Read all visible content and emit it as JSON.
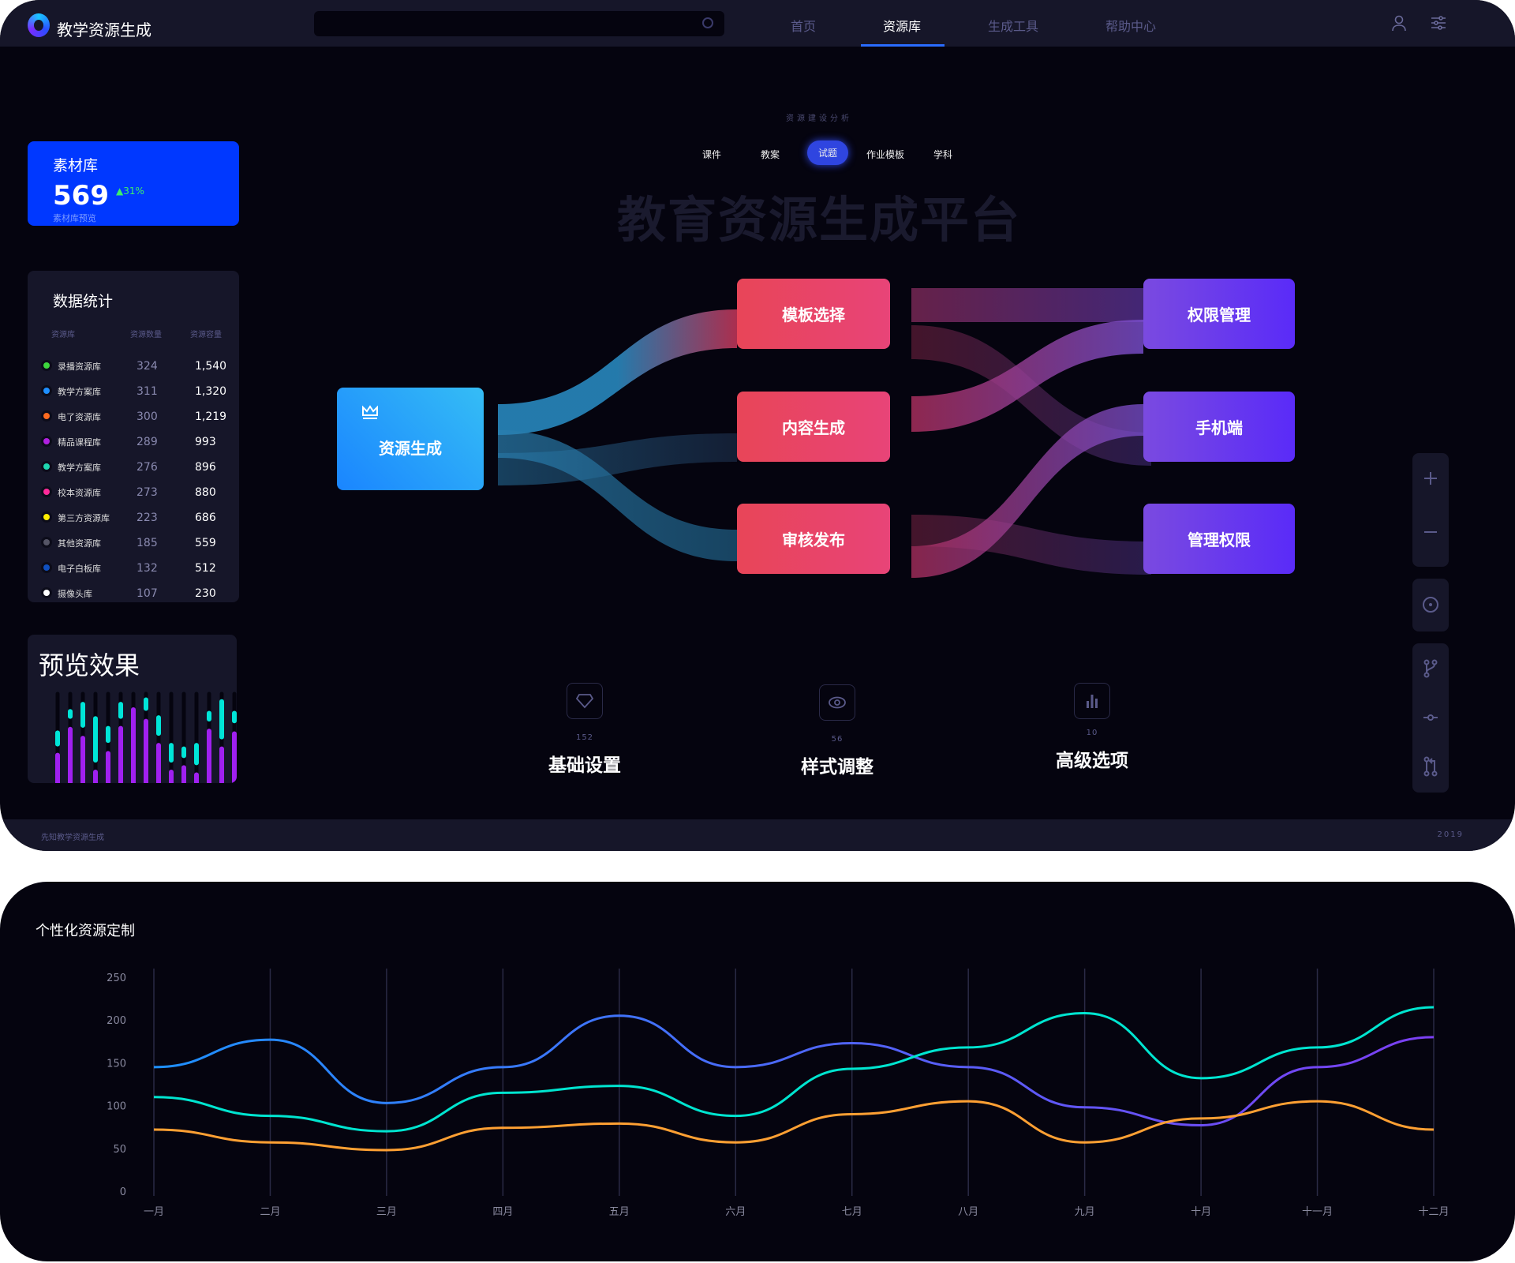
{
  "header": {
    "app_title": "教学资源生成",
    "search_placeholder": "",
    "nav": [
      {
        "label": "首页",
        "active": false
      },
      {
        "label": "资源库",
        "active": true
      },
      {
        "label": "生成工具",
        "active": false
      },
      {
        "label": "帮助中心",
        "active": false
      }
    ],
    "accent": "#2a6cff"
  },
  "material_card": {
    "title": "素材库",
    "value": "569",
    "delta": "31%",
    "subtitle": "素材库预览"
  },
  "stats": {
    "title": "数据统计",
    "columns": [
      "资源库",
      "资源数量",
      "资源容量"
    ],
    "rows": [
      {
        "name": "录播资源库",
        "count": "324",
        "capacity": "1,540",
        "color": "#3dd63d"
      },
      {
        "name": "教学方案库",
        "count": "311",
        "capacity": "1,320",
        "color": "#1e8fff"
      },
      {
        "name": "电了资源库",
        "count": "300",
        "capacity": "1,219",
        "color": "#ff6a1f"
      },
      {
        "name": "精品课程库",
        "count": "289",
        "capacity": "993",
        "color": "#b020e0"
      },
      {
        "name": "教学方案库",
        "count": "276",
        "capacity": "896",
        "color": "#1ed6b0"
      },
      {
        "name": "校本资源库",
        "count": "273",
        "capacity": "880",
        "color": "#ff2a9a"
      },
      {
        "name": "第三方资源库",
        "count": "223",
        "capacity": "686",
        "color": "#ffee00"
      },
      {
        "name": "其他资源库",
        "count": "185",
        "capacity": "559",
        "color": "#555566"
      },
      {
        "name": "电子白板库",
        "count": "132",
        "capacity": "512",
        "color": "#1050c0"
      },
      {
        "name": "摄像头库",
        "count": "107",
        "capacity": "230",
        "color": "#ffffff"
      }
    ]
  },
  "preview": {
    "title": "预览效果",
    "bars": [
      {
        "base": 0.34,
        "seg": [
          0.41,
          0.59
        ]
      },
      {
        "base": 0.63,
        "seg": [
          0.72,
          0.83
        ]
      },
      {
        "base": 0.53,
        "seg": [
          0.62,
          0.91
        ]
      },
      {
        "base": 0.15,
        "seg": [
          0.23,
          0.75
        ]
      },
      {
        "base": 0.36,
        "seg": [
          0.45,
          0.64
        ]
      },
      {
        "base": 0.64,
        "seg": [
          0.72,
          0.91
        ]
      },
      {
        "base": 0.85,
        "seg": null
      },
      {
        "base": 0.72,
        "seg": [
          0.81,
          0.96
        ]
      },
      {
        "base": 0.45,
        "seg": [
          0.53,
          0.76
        ]
      },
      {
        "base": 0.15,
        "seg": [
          0.23,
          0.45
        ]
      },
      {
        "base": 0.2,
        "seg": [
          0.28,
          0.41
        ]
      },
      {
        "base": 0.12,
        "seg": [
          0.2,
          0.45
        ]
      },
      {
        "base": 0.61,
        "seg": [
          0.69,
          0.81
        ]
      },
      {
        "base": 0.41,
        "seg": [
          0.49,
          0.94
        ]
      },
      {
        "base": 0.58,
        "seg": [
          0.67,
          0.81
        ]
      }
    ],
    "colors": {
      "base": "#a020f0",
      "seg": "#00e5d8"
    }
  },
  "center": {
    "subtitle": "资源建设分析",
    "tabs": [
      {
        "label": "课件",
        "active": false
      },
      {
        "label": "教案",
        "active": false
      },
      {
        "label": "试题",
        "active": true
      },
      {
        "label": "作业模板",
        "active": false
      },
      {
        "label": "学科",
        "active": false
      }
    ],
    "watermark_title": "教育资源生成平台"
  },
  "flow": {
    "source": {
      "label": "资源生成",
      "icon": "crown-icon"
    },
    "middle": [
      "模板选择",
      "内容生成",
      "审核发布"
    ],
    "targets": [
      "权限管理",
      "手机端",
      "管理权限"
    ]
  },
  "features": [
    {
      "icon": "diamond-icon",
      "count": "152",
      "label": "基础设置"
    },
    {
      "icon": "eye-icon",
      "count": "56",
      "label": "样式调整"
    },
    {
      "icon": "bar-chart-icon",
      "count": "10",
      "label": "高级选项"
    }
  ],
  "toolbar": [
    "zoom-in-icon",
    "zoom-out-icon",
    "target-icon",
    "branch-icon",
    "commit-icon",
    "pull-request-icon"
  ],
  "footer": {
    "left": "先知教学资源生成",
    "right": "2019"
  },
  "chart_section": {
    "title": "个性化资源定制"
  },
  "chart_data": {
    "type": "line",
    "title": "",
    "xlabel": "",
    "ylabel": "",
    "categories": [
      "一月",
      "二月",
      "三月",
      "四月",
      "五月",
      "六月",
      "七月",
      "八月",
      "九月",
      "十月",
      "十一月",
      "十二月"
    ],
    "ylim": [
      0,
      250
    ],
    "yticks": [
      0,
      50,
      100,
      150,
      200,
      250
    ],
    "grid": "vertical",
    "smooth": true,
    "series": [
      {
        "values": [
          145,
          177,
          103,
          145,
          205,
          145,
          173,
          145,
          98,
          77,
          145,
          180
        ],
        "color": [
          "#1e90ff",
          "#7b3ff2"
        ]
      },
      {
        "values": [
          110,
          88,
          70,
          115,
          123,
          88,
          143,
          168,
          208,
          132,
          168,
          215
        ],
        "color": "#00e5d0"
      },
      {
        "values": [
          72,
          57,
          48,
          74,
          79,
          57,
          90,
          105,
          57,
          85,
          105,
          72
        ],
        "color": "#ffa033"
      }
    ]
  }
}
